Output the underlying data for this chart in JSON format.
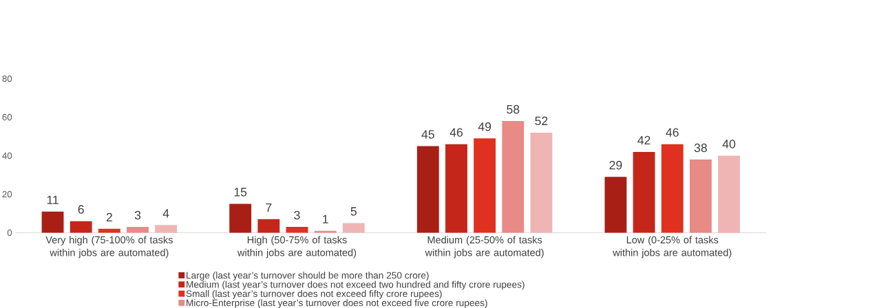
{
  "chart_data": {
    "type": "bar",
    "categories": [
      "Very high (75-100% of tasks within jobs are automated)",
      "High (50-75% of tasks within jobs are automated)",
      "Medium (25-50% of tasks within jobs are automated)",
      "Low (0-25% of tasks within jobs are automated)"
    ],
    "series": [
      {
        "name": "Large (last year’s turnover should be more than 250 crore)",
        "color": "#a82015",
        "values": [
          11,
          15,
          45,
          29
        ]
      },
      {
        "name": "Medium (last year’s turnover does not exceed two hundred and fifty crore rupees)",
        "color": "#c4261a",
        "values": [
          6,
          7,
          46,
          42
        ]
      },
      {
        "name": "Small (last year’s turnover does not exceed fifty crore rupees)",
        "color": "#df3020",
        "values": [
          2,
          3,
          49,
          46
        ]
      },
      {
        "name": "Micro-Enterprise (last year’s turnover does not exceed five crore rupees)",
        "color": "#e88a86",
        "values": [
          3,
          1,
          58,
          38
        ]
      },
      {
        "color": "#efb5b4",
        "values": [
          4,
          5,
          52,
          40
        ]
      }
    ],
    "ylim": [
      0,
      80
    ],
    "yticks": [
      0,
      20,
      40,
      60,
      80
    ],
    "data_labels": true,
    "legend": "bottom"
  }
}
